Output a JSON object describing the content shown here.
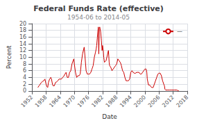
{
  "chart_data": {
    "type": "line",
    "title": "Federal Funds Rate (effective)",
    "subtitle": "1954-06 to 2014-05",
    "x_label": "Date",
    "y_label": "Percent",
    "xlim": [
      1952,
      2018
    ],
    "xticks": [
      1952,
      1958,
      1964,
      1970,
      1976,
      1982,
      1988,
      1994,
      2000,
      2006,
      2012,
      2018
    ],
    "ylim": [
      0,
      20
    ],
    "yticks": [
      0,
      2,
      4,
      6,
      8,
      10,
      12,
      14,
      16,
      18,
      20
    ],
    "grid": true,
    "legend": "upper right",
    "x": [
      1954.5,
      1955.0,
      1955.5,
      1956.0,
      1956.5,
      1957.0,
      1957.5,
      1958.0,
      1958.3,
      1958.7,
      1959.0,
      1959.5,
      1960.0,
      1960.3,
      1960.7,
      1961.0,
      1961.5,
      1962.0,
      1962.5,
      1963.0,
      1963.5,
      1964.0,
      1964.5,
      1965.0,
      1965.5,
      1966.0,
      1966.5,
      1966.8,
      1967.0,
      1967.5,
      1968.0,
      1968.5,
      1969.0,
      1969.5,
      1969.8,
      1970.0,
      1970.5,
      1971.0,
      1971.5,
      1972.0,
      1972.5,
      1973.0,
      1973.5,
      1974.0,
      1974.2,
      1974.5,
      1975.0,
      1975.5,
      1976.0,
      1976.5,
      1977.0,
      1977.5,
      1978.0,
      1978.5,
      1979.0,
      1979.3,
      1979.5,
      1979.8,
      1980.0,
      1980.2,
      1980.4,
      1980.6,
      1980.8,
      1981.0,
      1981.2,
      1981.5,
      1981.8,
      1982.0,
      1982.3,
      1982.5,
      1982.8,
      1983.0,
      1983.5,
      1984.0,
      1984.3,
      1984.5,
      1984.8,
      1985.0,
      1985.5,
      1986.0,
      1986.5,
      1987.0,
      1987.5,
      1988.0,
      1988.5,
      1989.0,
      1989.5,
      1989.8,
      1990.0,
      1990.5,
      1991.0,
      1991.5,
      1992.0,
      1992.5,
      1993.0,
      1993.5,
      1994.0,
      1994.5,
      1995.0,
      1995.5,
      1996.0,
      1996.5,
      1997.0,
      1997.5,
      1998.0,
      1998.5,
      1999.0,
      1999.5,
      2000.0,
      2000.5,
      2000.8,
      2001.0,
      2001.5,
      2002.0,
      2002.5,
      2003.0,
      2003.5,
      2004.0,
      2004.5,
      2005.0,
      2005.5,
      2006.0,
      2006.5,
      2007.0,
      2007.5,
      2008.0,
      2008.3,
      2008.5,
      2008.8,
      2009.0,
      2009.5,
      2010.0,
      2010.5,
      2011.0,
      2011.5,
      2012.0,
      2012.5,
      2013.0,
      2013.5,
      2014.0,
      2014.4
    ],
    "series": [
      {
        "name": "—",
        "color": "#cc0000",
        "values": [
          1.0,
          1.5,
          2.0,
          2.5,
          2.8,
          3.0,
          3.5,
          2.0,
          1.3,
          1.0,
          2.5,
          3.5,
          4.0,
          3.5,
          2.0,
          1.5,
          1.5,
          2.5,
          2.7,
          3.0,
          3.5,
          3.5,
          3.5,
          4.0,
          4.3,
          5.0,
          5.5,
          4.5,
          4.0,
          4.0,
          5.5,
          6.0,
          8.0,
          9.0,
          9.5,
          8.0,
          5.5,
          4.0,
          4.5,
          4.5,
          5.0,
          8.5,
          11.0,
          12.5,
          13.0,
          10.5,
          6.0,
          5.0,
          5.0,
          5.0,
          5.5,
          6.5,
          7.5,
          10.0,
          11.5,
          12.5,
          13.5,
          16.0,
          17.5,
          19.0,
          11.0,
          18.5,
          19.0,
          19.0,
          17.5,
          15.0,
          12.0,
          13.5,
          12.0,
          10.0,
          8.5,
          8.5,
          9.0,
          10.5,
          11.5,
          12.0,
          8.5,
          7.5,
          7.0,
          6.0,
          6.5,
          7.0,
          7.5,
          8.0,
          9.5,
          9.0,
          8.5,
          8.0,
          7.5,
          6.0,
          5.5,
          4.0,
          3.0,
          3.0,
          3.0,
          3.5,
          5.5,
          6.0,
          5.5,
          5.25,
          5.25,
          5.5,
          5.5,
          5.5,
          5.0,
          5.0,
          5.5,
          6.0,
          6.5,
          6.5,
          5.5,
          3.5,
          1.75,
          1.75,
          1.25,
          1.0,
          1.0,
          2.0,
          3.0,
          4.0,
          5.0,
          5.25,
          5.25,
          4.5,
          3.0,
          2.0,
          1.5,
          0.5,
          0.25,
          0.25,
          0.25,
          0.25,
          0.25,
          0.25,
          0.25,
          0.25,
          0.25,
          0.25,
          0.25,
          0.08,
          0.08
        ]
      }
    ]
  }
}
